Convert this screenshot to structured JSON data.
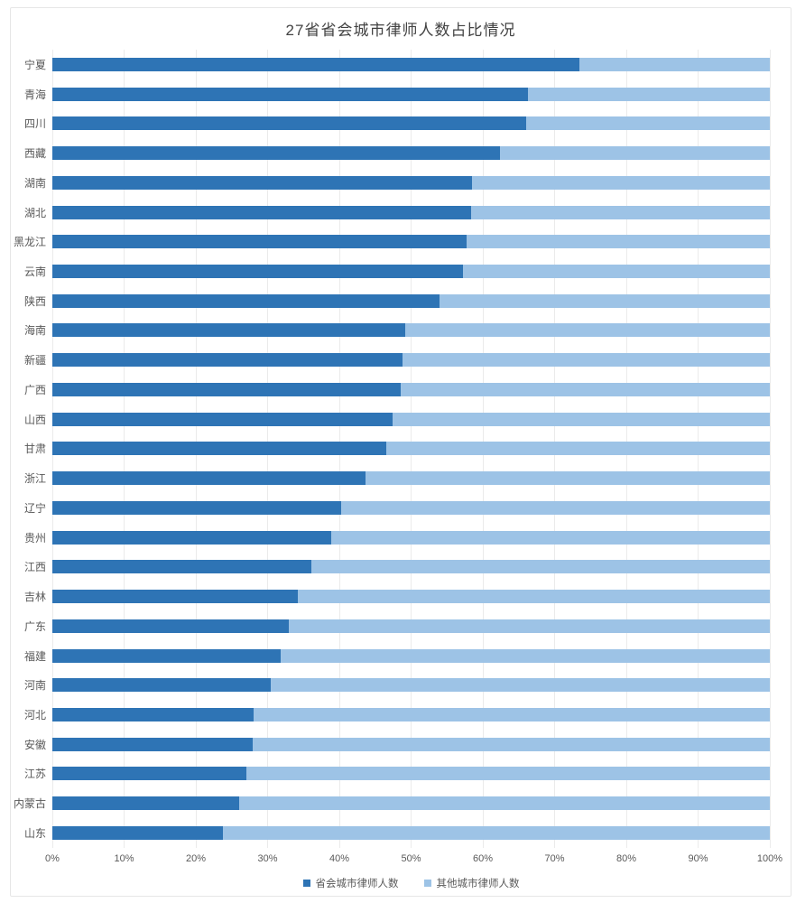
{
  "colors": {
    "capital_series": "#2e74b5",
    "other_series": "#9dc3e6",
    "gridline": "#ebebeb",
    "axis_text": "#595959",
    "title_text": "#424242",
    "frame_border": "#e6e6e6",
    "background": "#ffffff"
  },
  "legend": [
    {
      "label": "省会城市律师人数",
      "color": "#2e74b5"
    },
    {
      "label": "其他城市律师人数",
      "color": "#9dc3e6"
    }
  ],
  "chart_data": {
    "type": "bar",
    "orientation": "horizontal",
    "stacked": true,
    "title": "27省省会城市律师人数占比情况",
    "xlabel": "",
    "ylabel": "",
    "x_axis": {
      "min": 0,
      "max": 100,
      "unit": "%",
      "tick_step": 10,
      "ticks": [
        "0%",
        "10%",
        "20%",
        "30%",
        "40%",
        "50%",
        "60%",
        "70%",
        "80%",
        "90%",
        "100%"
      ],
      "grid": true
    },
    "legend_position": "bottom",
    "categories": [
      "宁夏",
      "青海",
      "四川",
      "西藏",
      "湖南",
      "湖北",
      "黑龙江",
      "云南",
      "陕西",
      "海南",
      "新疆",
      "广西",
      "山西",
      "甘肃",
      "浙江",
      "辽宁",
      "贵州",
      "江西",
      "吉林",
      "广东",
      "福建",
      "河南",
      "河北",
      "安徽",
      "江苏",
      "内蒙古",
      "山东"
    ],
    "series": [
      {
        "name": "省会城市律师人数",
        "color": "#2e74b5",
        "values": [
          73.4,
          66.3,
          66.0,
          62.4,
          58.5,
          58.4,
          57.7,
          57.2,
          54.0,
          49.2,
          48.8,
          48.5,
          47.4,
          46.5,
          43.6,
          40.3,
          38.9,
          36.1,
          34.2,
          33.0,
          31.8,
          30.4,
          28.1,
          27.9,
          27.1,
          26.0,
          23.8
        ]
      },
      {
        "name": "其他城市律师人数",
        "color": "#9dc3e6",
        "values": [
          26.6,
          33.7,
          34.0,
          37.6,
          41.5,
          41.6,
          42.3,
          42.8,
          46.0,
          50.8,
          51.2,
          51.5,
          52.6,
          53.5,
          56.4,
          59.7,
          61.1,
          63.9,
          65.8,
          67.0,
          68.2,
          69.6,
          71.9,
          72.1,
          72.9,
          74.0,
          76.2
        ]
      }
    ]
  }
}
